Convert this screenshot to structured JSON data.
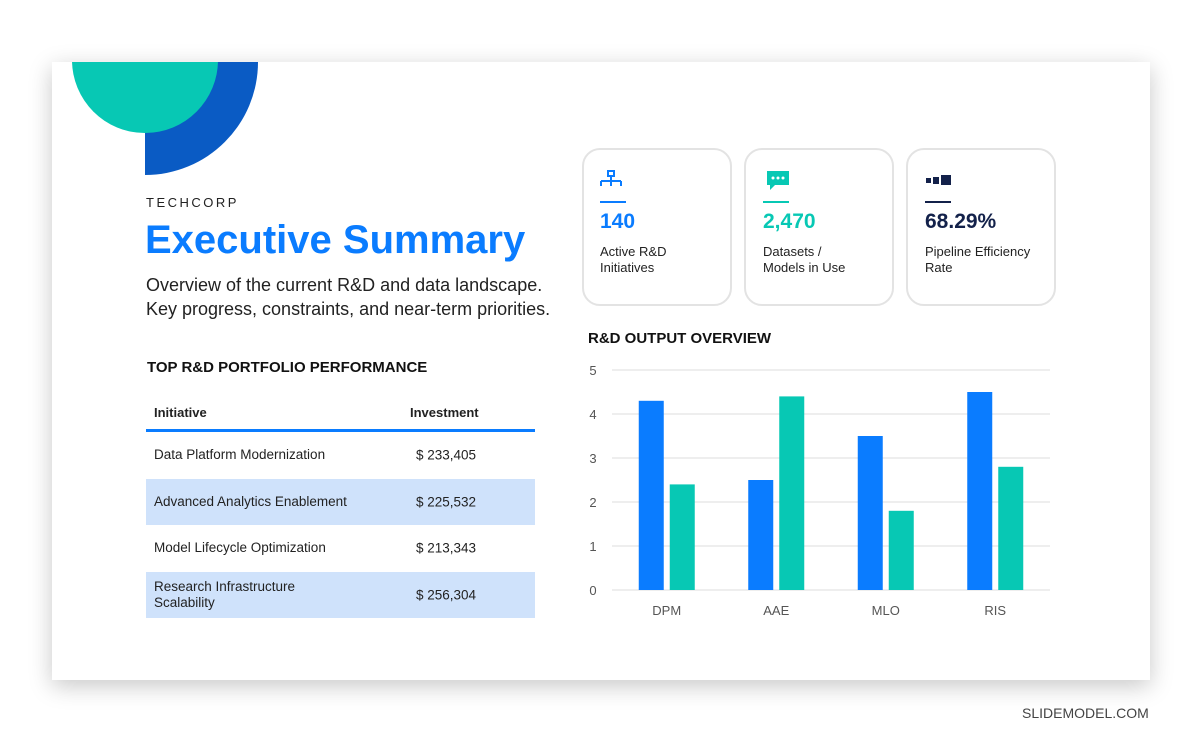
{
  "header": {
    "brand": "TECHCORP",
    "title": "Executive Summary",
    "subtitle_lines": [
      "Overview of the current R&D and data landscape.",
      "Key progress, constraints, and near-term priorities."
    ]
  },
  "kpis": [
    {
      "value": "140",
      "label": "Active R&D Initiatives"
    },
    {
      "value": "2,470",
      "label": "Datasets / Models in Use"
    },
    {
      "value": "68.29%",
      "label": "Pipeline Efficiency Rate"
    }
  ],
  "table": {
    "title": "TOP R&D PORTFOLIO PERFORMANCE",
    "columns": [
      "Initiative",
      "Investment"
    ],
    "rows": [
      [
        "Data Platform Modernization",
        "$ 233,405"
      ],
      [
        "Advanced Analytics Enablement",
        "$ 225,532"
      ],
      [
        "Model Lifecycle Optimization",
        "$ 213,343"
      ],
      [
        "Research Infrastructure Scalability",
        "$ 256,304"
      ]
    ]
  },
  "chart_data": {
    "type": "bar",
    "title": "R&D OUTPUT OVERVIEW",
    "categories": [
      "DPM",
      "AAE",
      "MLO",
      "RIS"
    ],
    "series": [
      {
        "color": "#0a7cff",
        "values": [
          4.3,
          2.5,
          3.5,
          4.5
        ]
      },
      {
        "color": "#07c8b4",
        "values": [
          2.4,
          4.4,
          1.8,
          2.8
        ]
      }
    ],
    "ylim": [
      0,
      5
    ],
    "yticks": [
      0,
      1,
      2,
      3,
      4,
      5
    ],
    "grid": true
  },
  "footer": "SLIDEMODEL.COM"
}
